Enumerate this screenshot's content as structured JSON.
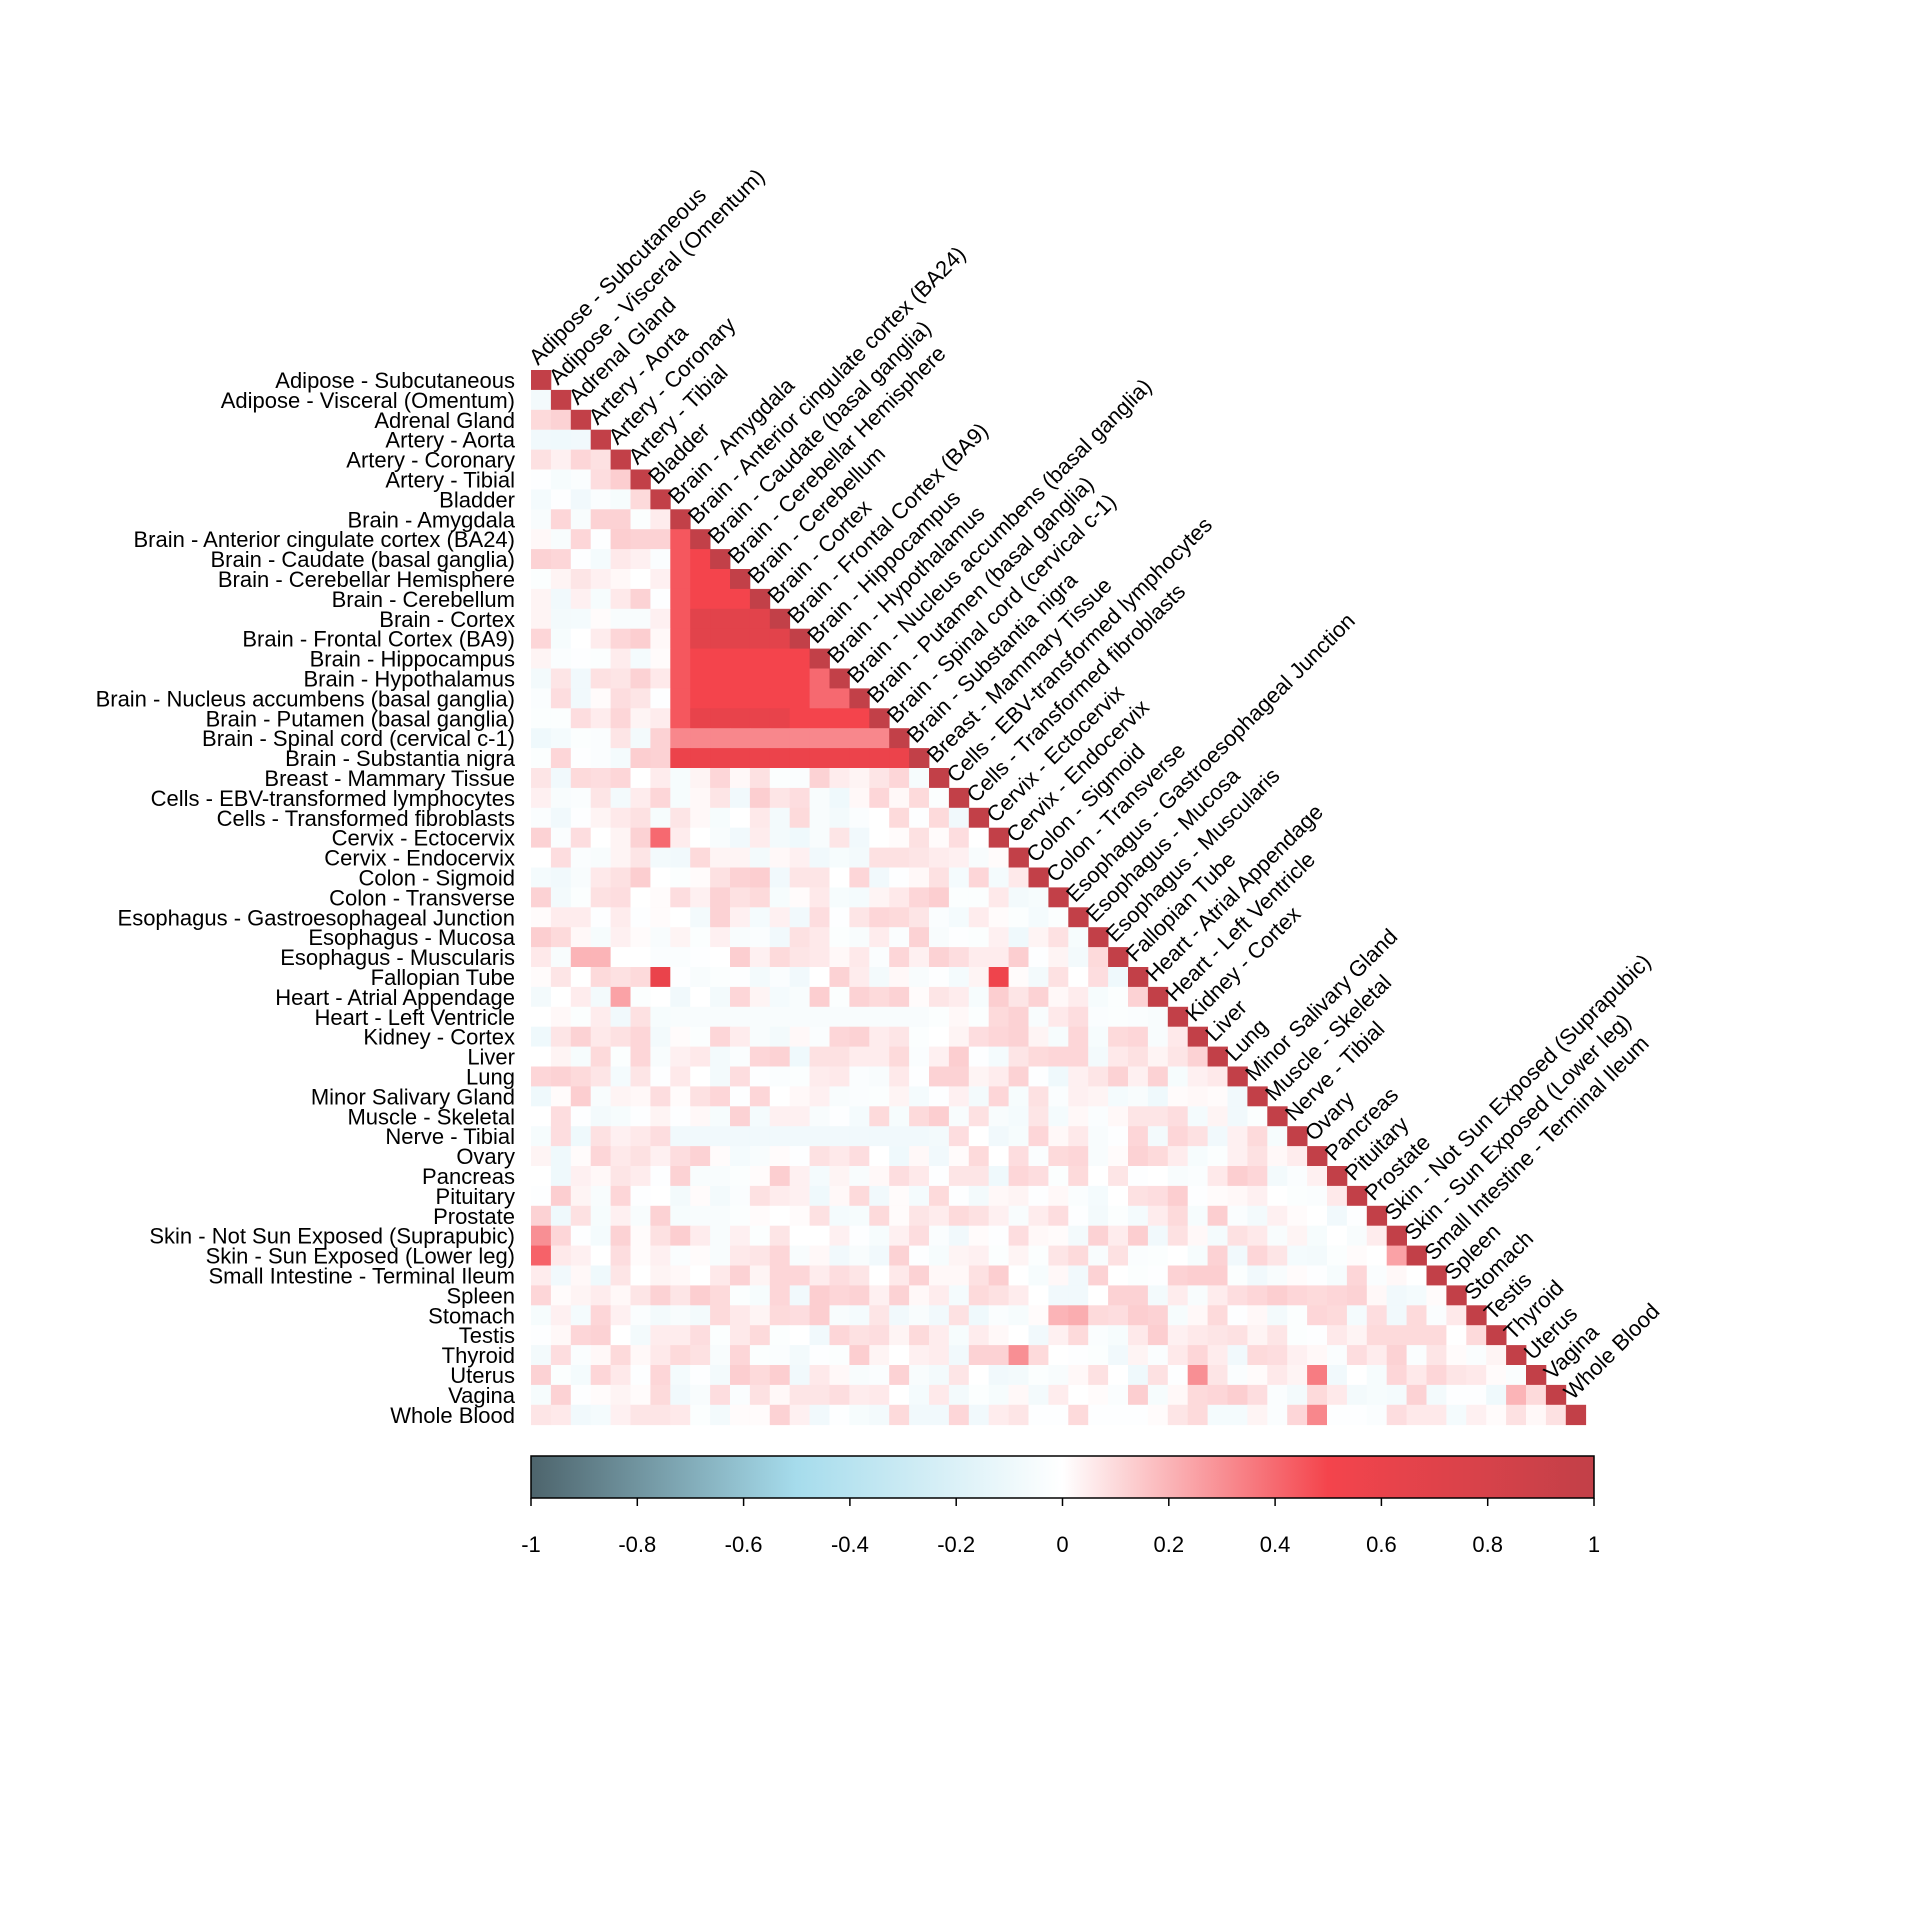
{
  "chart_data": {
    "type": "heatmap",
    "subtype": "lower-triangular correlation matrix",
    "labels": [
      "Adipose - Subcutaneous",
      "Adipose - Visceral (Omentum)",
      "Adrenal Gland",
      "Artery - Aorta",
      "Artery - Coronary",
      "Artery - Tibial",
      "Bladder",
      "Brain - Amygdala",
      "Brain - Anterior cingulate cortex (BA24)",
      "Brain - Caudate (basal ganglia)",
      "Brain - Cerebellar Hemisphere",
      "Brain - Cerebellum",
      "Brain - Cortex",
      "Brain - Frontal Cortex (BA9)",
      "Brain - Hippocampus",
      "Brain - Hypothalamus",
      "Brain - Nucleus accumbens (basal ganglia)",
      "Brain - Putamen (basal ganglia)",
      "Brain - Spinal cord (cervical c-1)",
      "Brain - Substantia nigra",
      "Breast - Mammary Tissue",
      "Cells - EBV-transformed lymphocytes",
      "Cells - Transformed fibroblasts",
      "Cervix - Ectocervix",
      "Cervix - Endocervix",
      "Colon - Sigmoid",
      "Colon - Transverse",
      "Esophagus - Gastroesophageal Junction",
      "Esophagus - Mucosa",
      "Esophagus - Muscularis",
      "Fallopian Tube",
      "Heart - Atrial Appendage",
      "Heart - Left Ventricle",
      "Kidney - Cortex",
      "Liver",
      "Lung",
      "Minor Salivary Gland",
      "Muscle - Skeletal",
      "Nerve - Tibial",
      "Ovary",
      "Pancreas",
      "Pituitary",
      "Prostate",
      "Skin - Not Sun Exposed (Suprapubic)",
      "Skin - Sun Exposed (Lower leg)",
      "Small Intestine - Terminal Ileum",
      "Spleen",
      "Stomach",
      "Testis",
      "Thyroid",
      "Uterus",
      "Vagina",
      "Whole Blood"
    ],
    "values_note": "Pairwise correlations, lower triangle (row i, columns 0..i). Diagonal = 1.",
    "colorbar": {
      "min": -1,
      "max": 1,
      "ticks": [
        "-1",
        "-0.8",
        "-0.6",
        "-0.4",
        "-0.2",
        "0",
        "0.2",
        "0.4",
        "0.6",
        "0.8",
        "1"
      ],
      "tick_values": [
        -1,
        -0.8,
        -0.6,
        -0.4,
        -0.2,
        0,
        0.2,
        0.4,
        0.6,
        0.8,
        1
      ],
      "stops": [
        {
          "v": -1,
          "color": "#4d646c"
        },
        {
          "v": -0.5,
          "color": "#a6dcec"
        },
        {
          "v": 0,
          "color": "#ffffff"
        },
        {
          "v": 0.5,
          "color": "#f4444c"
        },
        {
          "v": 1,
          "color": "#c24048"
        }
      ]
    },
    "diagonal_color": "#c24048",
    "grid": false,
    "legend": "bottom (horizontal colorbar)"
  }
}
